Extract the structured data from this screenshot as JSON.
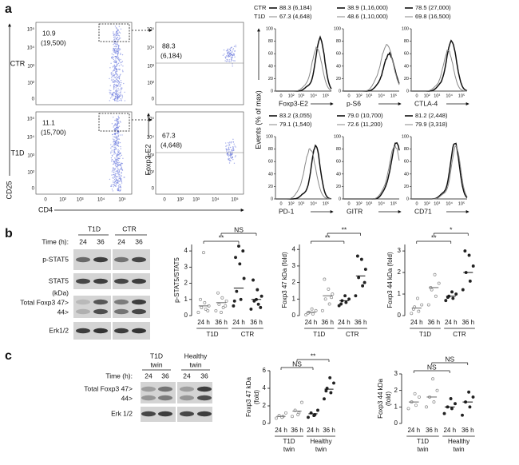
{
  "panel_a": {
    "label": "a",
    "row_labels": [
      "CTR",
      "T1D"
    ],
    "gate_values": [
      [
        "10.9",
        "(19,500)"
      ],
      [
        "11.1",
        "(15,700)"
      ]
    ],
    "foxp3_values": [
      [
        "88.3",
        "(6,184)"
      ],
      [
        "67.3",
        "(4,648)"
      ]
    ],
    "x_axis_label": "CD4",
    "y_axis_label": "CD25",
    "y2_axis_label": "Foxp3-E2",
    "log_ticks": [
      "0",
      "10²",
      "10³",
      "10⁴",
      "10⁵"
    ],
    "hist_y_label": "Events (% of max)",
    "hist_yticks": [
      0,
      20,
      40,
      60,
      80,
      100
    ],
    "legend_names": [
      "CTR",
      "T1D"
    ],
    "histograms": [
      {
        "marker": "Foxp3-E2",
        "ctr": "88.3 (6,184)",
        "t1d": "67.3 (4,648)"
      },
      {
        "marker": "p-S6",
        "ctr": "38.9 (1,16,000)",
        "t1d": "48.6 (1,10,000)"
      },
      {
        "marker": "CTLA-4",
        "ctr": "78.5 (27,000)",
        "t1d": "69.8 (16,500)"
      },
      {
        "marker": "PD-1",
        "ctr": "83.2 (3,055)",
        "t1d": "79.1 (1,540)"
      },
      {
        "marker": "GITR",
        "ctr": "79.0 (10,700)",
        "t1d": "72.6 (11,200)"
      },
      {
        "marker": "CD71",
        "ctr": "81.2 (2,448)",
        "t1d": "79.9 (3,318)"
      }
    ]
  },
  "panel_b": {
    "label": "b",
    "blot": {
      "groups": [
        "T1D",
        "CTR"
      ],
      "time_label": "Time (h):",
      "times": [
        24,
        36,
        24,
        36
      ],
      "rows": [
        "p-STAT5",
        "STAT5"
      ],
      "kda": "(kDa)",
      "foxp3": "Total Foxp3 47>",
      "band44": "44>",
      "erk": "Erk1/2"
    },
    "charts": [
      {
        "y_label": "p-STAT5/STAT5",
        "ylim": [
          0,
          4.4
        ],
        "yticks": [
          0,
          1,
          2,
          3,
          4
        ],
        "categories": [
          "24 h",
          "36 h",
          "24 h",
          "36 h"
        ],
        "groups": [
          "T1D",
          "CTR"
        ],
        "significance": [
          "NS",
          "**"
        ],
        "means": [
          0.6,
          0.8,
          1.7,
          1.0
        ],
        "values": [
          [
            0.2,
            0.4,
            0.5,
            0.6,
            0.8,
            1.0,
            0.3,
            3.9
          ],
          [
            0.3,
            0.5,
            0.7,
            0.9,
            1.1,
            1.4,
            0.6,
            0.2
          ],
          [
            0.6,
            1.0,
            1.5,
            2.3,
            3.2,
            3.6,
            4.0,
            4.3,
            0.9
          ],
          [
            0.4,
            0.7,
            0.9,
            1.2,
            1.6,
            2.2,
            0.5,
            1.0
          ]
        ]
      },
      {
        "y_label": "Foxp3 47 kDa (fold)",
        "ylim": [
          0,
          4.3
        ],
        "yticks": [
          0,
          1,
          2,
          3,
          4
        ],
        "categories": [
          "24 h",
          "36 h",
          "24 h",
          "36 h"
        ],
        "groups": [
          "T1D",
          "CTR"
        ],
        "significance": [
          "**",
          "**"
        ],
        "means": [
          0.2,
          1.2,
          0.9,
          2.4
        ],
        "values": [
          [
            0.05,
            0.1,
            0.2,
            0.3,
            0.4,
            0.15
          ],
          [
            0.3,
            0.7,
            1.0,
            1.3,
            1.6,
            2.2,
            1.1
          ],
          [
            0.6,
            0.8,
            0.9,
            1.0,
            1.2,
            0.7
          ],
          [
            1.2,
            1.8,
            2.3,
            2.8,
            3.4,
            3.6,
            2.0
          ]
        ]
      },
      {
        "y_label": "Foxp3 44 kDa (fold)",
        "ylim": [
          0,
          3.3
        ],
        "yticks": [
          0,
          1,
          2,
          3
        ],
        "categories": [
          "24 h",
          "36 h",
          "24 h",
          "36 h"
        ],
        "groups": [
          "T1D",
          "CTR"
        ],
        "significance": [
          "*",
          "**"
        ],
        "means": [
          0.35,
          1.3,
          0.9,
          2.0
        ],
        "values": [
          [
            0.1,
            0.2,
            0.4,
            0.5,
            0.8,
            0.3
          ],
          [
            0.5,
            0.9,
            1.2,
            1.5,
            1.9,
            1.3
          ],
          [
            0.7,
            0.8,
            0.9,
            1.0,
            1.1,
            0.85
          ],
          [
            1.2,
            1.6,
            2.0,
            2.3,
            2.8,
            3.0
          ]
        ]
      }
    ]
  },
  "panel_c": {
    "label": "c",
    "blot": {
      "groups": [
        [
          "T1D",
          "twin"
        ],
        [
          "Healthy",
          "twin"
        ]
      ],
      "time_label": "Time (h):",
      "times": [
        24,
        36,
        24,
        36
      ],
      "foxp3": "Total Foxp3 47>",
      "band44": "44>",
      "erk": "Erk 1/2"
    },
    "charts": [
      {
        "y_label": [
          "Foxp3 47 kDa",
          "(fold)"
        ],
        "ylim": [
          0,
          6
        ],
        "yticks": [
          0,
          2,
          4,
          6
        ],
        "categories": [
          "24 h",
          "36 h",
          "24 h",
          "36 h"
        ],
        "groups": [
          [
            "T1D",
            "twin"
          ],
          [
            "Healthy",
            "twin"
          ]
        ],
        "significance": [
          "**",
          "NS"
        ],
        "means": [
          0.8,
          1.4,
          1.1,
          3.9
        ],
        "values": [
          [
            0.6,
            0.8,
            0.9,
            1.2,
            0.7
          ],
          [
            0.8,
            1.2,
            1.5,
            2.4,
            1.0
          ],
          [
            0.7,
            1.0,
            1.2,
            1.5,
            0.9
          ],
          [
            2.8,
            3.5,
            4.0,
            4.6,
            5.2,
            3.7
          ]
        ]
      },
      {
        "y_label": [
          "Foxp3 44 kDa",
          "(fold)"
        ],
        "ylim": [
          0,
          3
        ],
        "yticks": [
          0,
          1,
          2,
          3
        ],
        "categories": [
          "24 h",
          "36 h",
          "24 h",
          "36 h"
        ],
        "groups": [
          [
            "T1D",
            "twin"
          ],
          [
            "Healthy",
            "twin"
          ]
        ],
        "significance": [
          "NS",
          "NS"
        ],
        "means": [
          1.3,
          1.6,
          1.0,
          1.3
        ],
        "values": [
          [
            0.9,
            1.1,
            1.3,
            1.6,
            1.8
          ],
          [
            1.0,
            1.3,
            1.6,
            2.0,
            2.7
          ],
          [
            0.6,
            0.9,
            1.0,
            1.2,
            1.5
          ],
          [
            0.5,
            1.0,
            1.3,
            1.6,
            1.9
          ]
        ]
      }
    ]
  }
}
